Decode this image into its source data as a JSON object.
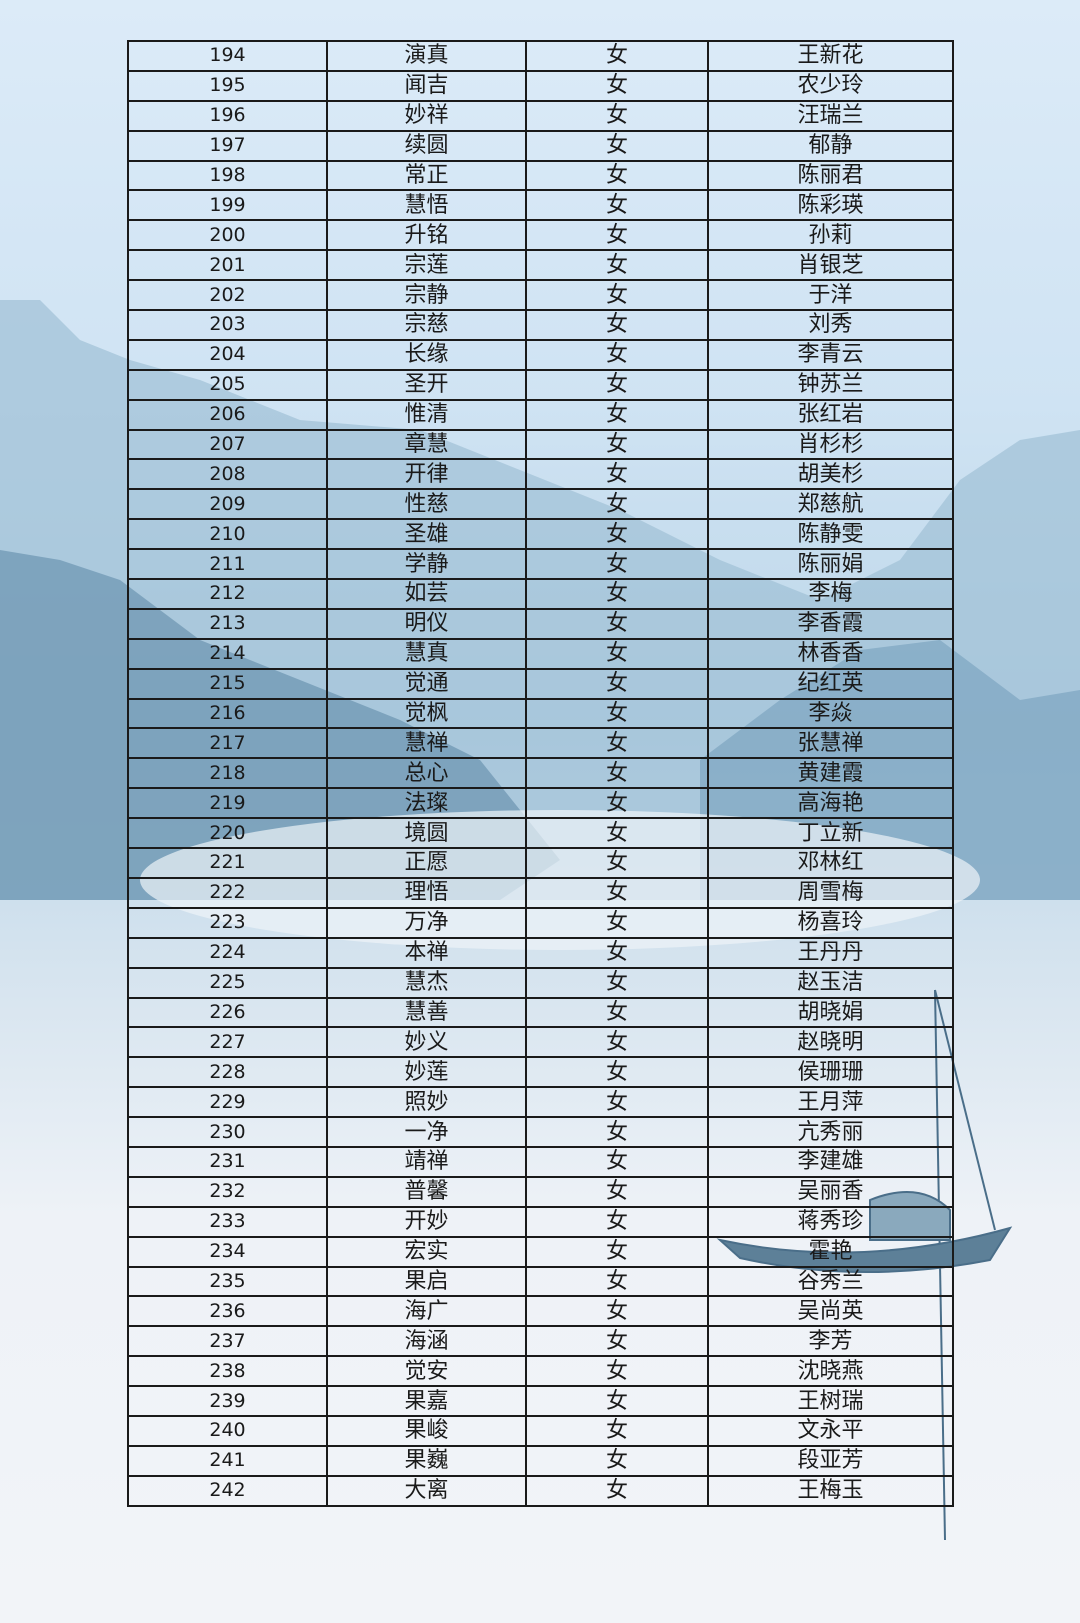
{
  "rows": [
    {
      "no": "194",
      "dharma": "演真",
      "gender": "女",
      "name": "王新花"
    },
    {
      "no": "195",
      "dharma": "闻吉",
      "gender": "女",
      "name": "农少玲"
    },
    {
      "no": "196",
      "dharma": "妙祥",
      "gender": "女",
      "name": "汪瑞兰"
    },
    {
      "no": "197",
      "dharma": "续圆",
      "gender": "女",
      "name": "郁静"
    },
    {
      "no": "198",
      "dharma": "常正",
      "gender": "女",
      "name": "陈丽君"
    },
    {
      "no": "199",
      "dharma": "慧悟",
      "gender": "女",
      "name": "陈彩瑛"
    },
    {
      "no": "200",
      "dharma": "升铭",
      "gender": "女",
      "name": "孙莉"
    },
    {
      "no": "201",
      "dharma": "宗莲",
      "gender": "女",
      "name": "肖银芝"
    },
    {
      "no": "202",
      "dharma": "宗静",
      "gender": "女",
      "name": "于洋"
    },
    {
      "no": "203",
      "dharma": "宗慈",
      "gender": "女",
      "name": "刘秀"
    },
    {
      "no": "204",
      "dharma": "长缘",
      "gender": "女",
      "name": "李青云"
    },
    {
      "no": "205",
      "dharma": "圣开",
      "gender": "女",
      "name": "钟苏兰"
    },
    {
      "no": "206",
      "dharma": "惟清",
      "gender": "女",
      "name": "张红岩"
    },
    {
      "no": "207",
      "dharma": "章慧",
      "gender": "女",
      "name": "肖杉杉"
    },
    {
      "no": "208",
      "dharma": "开律",
      "gender": "女",
      "name": "胡美杉"
    },
    {
      "no": "209",
      "dharma": "性慈",
      "gender": "女",
      "name": "郑慈航"
    },
    {
      "no": "210",
      "dharma": "圣雄",
      "gender": "女",
      "name": "陈静雯"
    },
    {
      "no": "211",
      "dharma": "学静",
      "gender": "女",
      "name": "陈丽娟"
    },
    {
      "no": "212",
      "dharma": "如芸",
      "gender": "女",
      "name": "李梅"
    },
    {
      "no": "213",
      "dharma": "明仪",
      "gender": "女",
      "name": "李香霞"
    },
    {
      "no": "214",
      "dharma": "慧真",
      "gender": "女",
      "name": "林香香"
    },
    {
      "no": "215",
      "dharma": "觉通",
      "gender": "女",
      "name": "纪红英"
    },
    {
      "no": "216",
      "dharma": "觉枫",
      "gender": "女",
      "name": "李焱"
    },
    {
      "no": "217",
      "dharma": "慧禅",
      "gender": "女",
      "name": "张慧禅"
    },
    {
      "no": "218",
      "dharma": "总心",
      "gender": "女",
      "name": "黄建霞"
    },
    {
      "no": "219",
      "dharma": "法璨",
      "gender": "女",
      "name": "高海艳"
    },
    {
      "no": "220",
      "dharma": "境圆",
      "gender": "女",
      "name": "丁立新"
    },
    {
      "no": "221",
      "dharma": "正愿",
      "gender": "女",
      "name": "邓林红"
    },
    {
      "no": "222",
      "dharma": "理悟",
      "gender": "女",
      "name": "周雪梅"
    },
    {
      "no": "223",
      "dharma": "万净",
      "gender": "女",
      "name": "杨喜玲"
    },
    {
      "no": "224",
      "dharma": "本禅",
      "gender": "女",
      "name": "王丹丹"
    },
    {
      "no": "225",
      "dharma": "慧杰",
      "gender": "女",
      "name": "赵玉洁"
    },
    {
      "no": "226",
      "dharma": "慧善",
      "gender": "女",
      "name": "胡晓娟"
    },
    {
      "no": "227",
      "dharma": "妙义",
      "gender": "女",
      "name": "赵晓明"
    },
    {
      "no": "228",
      "dharma": "妙莲",
      "gender": "女",
      "name": "侯珊珊"
    },
    {
      "no": "229",
      "dharma": "照妙",
      "gender": "女",
      "name": "王月萍"
    },
    {
      "no": "230",
      "dharma": "一净",
      "gender": "女",
      "name": "亢秀丽"
    },
    {
      "no": "231",
      "dharma": "靖禅",
      "gender": "女",
      "name": "李建雄"
    },
    {
      "no": "232",
      "dharma": "普馨",
      "gender": "女",
      "name": "吴丽香"
    },
    {
      "no": "233",
      "dharma": "开妙",
      "gender": "女",
      "name": "蒋秀珍"
    },
    {
      "no": "234",
      "dharma": "宏实",
      "gender": "女",
      "name": "霍艳"
    },
    {
      "no": "235",
      "dharma": "果启",
      "gender": "女",
      "name": "谷秀兰"
    },
    {
      "no": "236",
      "dharma": "海广",
      "gender": "女",
      "name": "吴尚英"
    },
    {
      "no": "237",
      "dharma": "海涵",
      "gender": "女",
      "name": "李芳"
    },
    {
      "no": "238",
      "dharma": "觉安",
      "gender": "女",
      "name": "沈晓燕"
    },
    {
      "no": "239",
      "dharma": "果嘉",
      "gender": "女",
      "name": "王树瑞"
    },
    {
      "no": "240",
      "dharma": "果峻",
      "gender": "女",
      "name": "文永平"
    },
    {
      "no": "241",
      "dharma": "果巍",
      "gender": "女",
      "name": "段亚芳"
    },
    {
      "no": "242",
      "dharma": "大离",
      "gender": "女",
      "name": "王梅玉"
    }
  ]
}
